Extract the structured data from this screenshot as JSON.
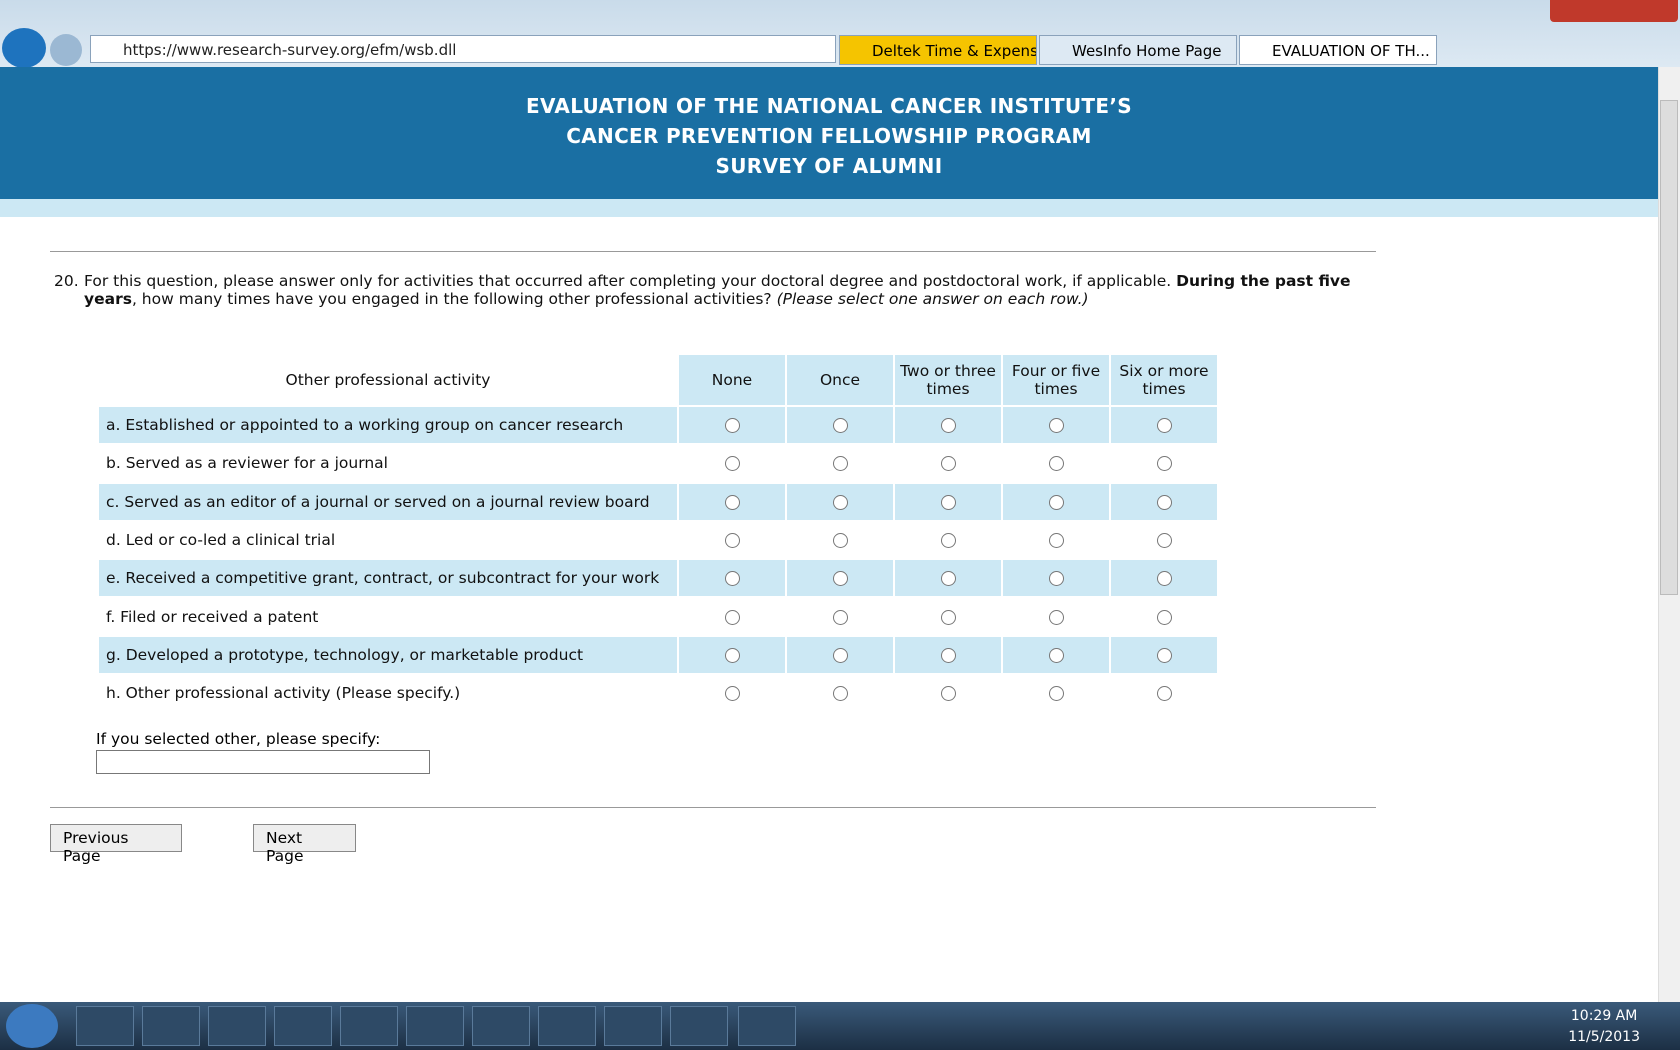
{
  "browser": {
    "url": "https://www.research-survey.org/efm/wsb.dll",
    "tabs": [
      "Deltek Time & Expense...",
      "WesInfo Home Page",
      "EVALUATION OF TH..."
    ]
  },
  "header": {
    "lines": [
      "EVALUATION OF THE NATIONAL CANCER INSTITUTE’S",
      "CANCER PREVENTION FELLOWSHIP PROGRAM",
      "SURVEY OF ALUMNI"
    ]
  },
  "question": {
    "number": "20.",
    "text_1": "For this question, please answer only for activities that occurred after completing your doctoral degree and postdoctoral work, if applicable.",
    "bold": "During the past five years",
    "text_2": ", how many times have you engaged in the following other professional activities?",
    "italic": "(Please select one answer on each row.)"
  },
  "table": {
    "row_header": "Other professional activity",
    "columns": [
      "None",
      "Once",
      "Two or three times",
      "Four or five times",
      "Six or more times"
    ],
    "rows": [
      "a. Established or appointed to a working group on cancer research",
      "b. Served as a reviewer for a journal",
      "c. Served as an editor of a journal or served on a journal review board",
      "d. Led or co-led a clinical trial",
      "e. Received a competitive grant, contract, or subcontract for your work",
      "f. Filed or received a patent",
      "g. Developed a prototype, technology, or marketable product",
      "h. Other professional activity (Please specify.)"
    ]
  },
  "specify_label": "If you selected other, please specify:",
  "buttons": [
    "Previous Page",
    "Next Page"
  ],
  "taskbar": {
    "time": "10:29 AM",
    "date": "11/5/2013"
  }
}
